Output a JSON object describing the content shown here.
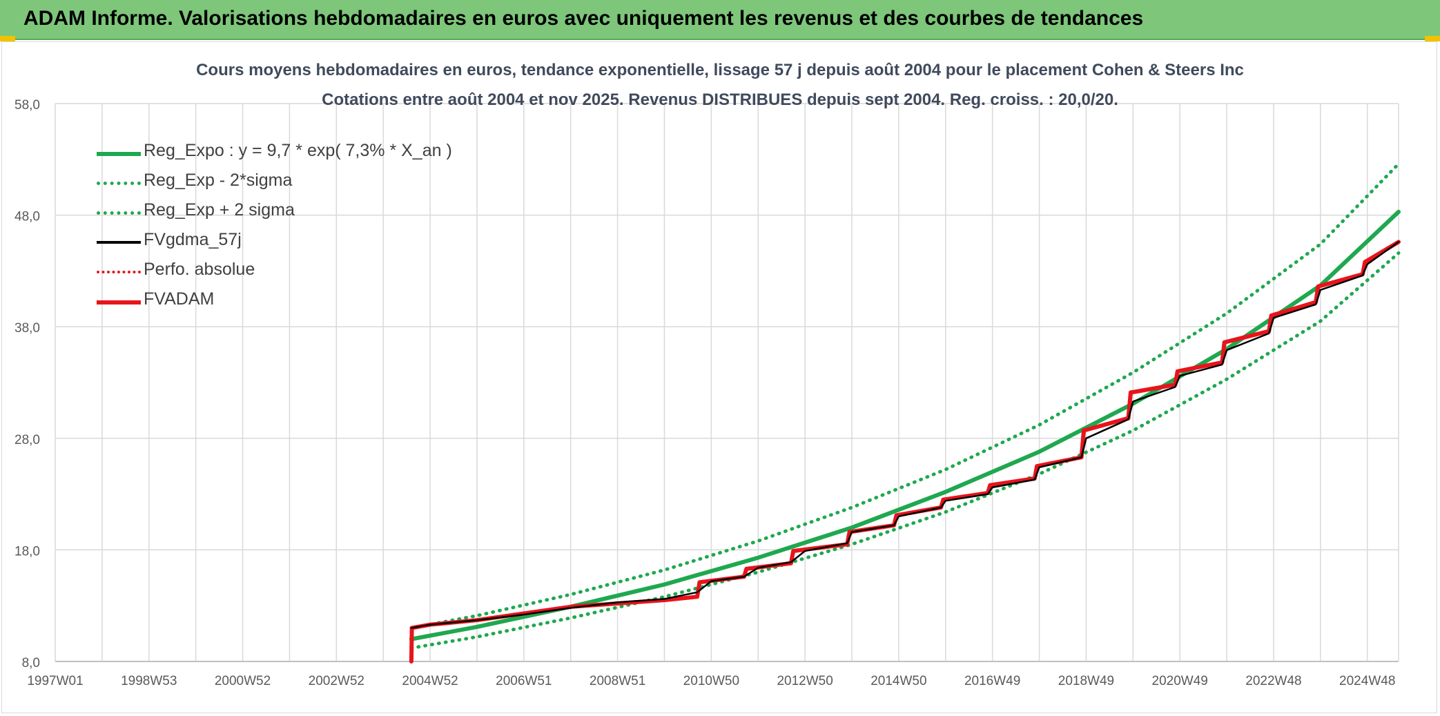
{
  "header": {
    "title": "ADAM Informe. Valorisations hebdomadaires en euros avec uniquement les revenus et des courbes de tendances"
  },
  "colors": {
    "header_bg": "#7dc67a",
    "reg_expo": "#1fa84f",
    "fvgdma": "#000000",
    "fvadam": "#e8141b"
  },
  "chart_data": {
    "type": "line",
    "title_line1": "Cours moyens hebdomadaires en euros, tendance exponentielle, lissage 57 j depuis août 2004 pour le placement Cohen & Steers Inc",
    "title_line2": "Cotations entre août 2004 et nov 2025. Revenus DISTRIBUES depuis sept 2004. Reg. croiss. : 20,0/20.",
    "xlabel": "",
    "ylabel": "",
    "ylim": [
      8,
      58
    ],
    "y_ticks": [
      "8,0",
      "18,0",
      "28,0",
      "38,0",
      "48,0",
      "58,0"
    ],
    "y_tick_values": [
      8,
      18,
      28,
      38,
      48,
      58
    ],
    "xlim": [
      1997.0,
      2026.0
    ],
    "x_tick_labels": [
      "1997W01",
      "1998W53",
      "2000W52",
      "2002W52",
      "2004W52",
      "2006W51",
      "2008W51",
      "2010W50",
      "2012W50",
      "2014W50",
      "2016W49",
      "2018W49",
      "2020W49",
      "2022W48",
      "2024W48"
    ],
    "x_tick_values": [
      1997.0,
      1999.0,
      2001.0,
      2003.0,
      2005.0,
      2007.0,
      2009.0,
      2011.0,
      2013.0,
      2015.0,
      2017.0,
      2019.0,
      2021.0,
      2023.0,
      2025.0
    ],
    "grid": true,
    "legend_position": "top-left",
    "series": [
      {
        "name": "Reg_Expo : y = 9,7 * exp( 7,3% *  X_an )",
        "style": "solid-thick",
        "color": "#1fa84f",
        "x": [
          2004.6,
          2006.0,
          2008.0,
          2010.0,
          2012.0,
          2014.0,
          2016.0,
          2018.0,
          2020.0,
          2022.0,
          2024.0,
          2026.0
        ],
        "y": [
          10.0,
          11.1,
          12.9,
          14.9,
          17.3,
          20.0,
          23.2,
          26.8,
          31.1,
          36.0,
          41.7,
          48.3
        ]
      },
      {
        "name": "Reg_Exp - 2*sigma",
        "style": "dotted",
        "color": "#1fa84f",
        "x": [
          2004.6,
          2006.0,
          2008.0,
          2010.0,
          2012.0,
          2014.0,
          2016.0,
          2018.0,
          2020.0,
          2022.0,
          2024.0,
          2026.0
        ],
        "y": [
          9.2,
          10.2,
          11.9,
          13.8,
          16.0,
          18.5,
          21.4,
          24.8,
          28.7,
          33.3,
          38.5,
          44.6
        ]
      },
      {
        "name": "Reg_Exp + 2 sigma",
        "style": "dotted",
        "color": "#1fa84f",
        "x": [
          2004.6,
          2006.0,
          2008.0,
          2010.0,
          2012.0,
          2014.0,
          2016.0,
          2018.0,
          2020.0,
          2022.0,
          2024.0,
          2026.0
        ],
        "y": [
          11.0,
          12.1,
          14.0,
          16.2,
          18.8,
          21.8,
          25.2,
          29.2,
          33.9,
          39.2,
          45.4,
          52.6
        ]
      },
      {
        "name": "FVgdma_57j",
        "style": "solid",
        "color": "#000000",
        "x": [
          2004.6,
          2005.0,
          2006.0,
          2007.0,
          2008.0,
          2009.0,
          2010.0,
          2010.7,
          2011.0,
          2011.7,
          2012.0,
          2012.7,
          2013.0,
          2013.9,
          2014.0,
          2014.9,
          2015.0,
          2015.9,
          2016.0,
          2016.9,
          2017.0,
          2017.9,
          2018.0,
          2018.9,
          2019.0,
          2019.9,
          2020.0,
          2020.9,
          2021.0,
          2021.9,
          2022.0,
          2022.9,
          2023.0,
          2023.9,
          2024.0,
          2024.9,
          2025.0,
          2026.0
        ],
        "y": [
          11.0,
          11.3,
          11.7,
          12.2,
          12.8,
          13.3,
          13.6,
          14.2,
          15.2,
          15.6,
          16.4,
          16.9,
          17.9,
          18.6,
          19.6,
          20.2,
          21.0,
          21.8,
          22.4,
          23.0,
          23.6,
          24.3,
          25.4,
          26.3,
          28.0,
          29.7,
          31.3,
          32.6,
          33.6,
          34.6,
          35.9,
          37.4,
          38.8,
          40.0,
          41.3,
          42.6,
          43.6,
          45.6
        ]
      },
      {
        "name": "Perfo. absolue",
        "style": "dotted",
        "color": "#e8141b",
        "x": [
          2004.6,
          2004.61,
          2005.0,
          2006.0,
          2007.0,
          2008.0,
          2009.0,
          2010.0,
          2010.7,
          2010.75,
          2011.7,
          2011.75,
          2012.7,
          2012.75,
          2013.9,
          2013.95,
          2014.9,
          2014.95,
          2015.9,
          2015.95,
          2016.9,
          2016.95,
          2017.9,
          2017.95,
          2018.9,
          2018.95,
          2019.9,
          2019.95,
          2020.9,
          2020.95,
          2021.9,
          2021.95,
          2022.9,
          2022.95,
          2023.9,
          2023.95,
          2024.9,
          2024.95,
          2026.0
        ],
        "y": [
          8.0,
          11.0,
          11.3,
          11.7,
          12.3,
          12.9,
          13.2,
          13.5,
          13.8,
          15.1,
          15.6,
          16.3,
          16.8,
          17.9,
          18.5,
          19.6,
          20.2,
          21.1,
          21.8,
          22.5,
          23.1,
          23.8,
          24.4,
          25.5,
          26.3,
          28.7,
          29.8,
          32.1,
          32.8,
          34.0,
          34.8,
          36.6,
          37.6,
          39.0,
          40.2,
          41.6,
          42.7,
          43.8,
          45.6
        ]
      },
      {
        "name": "FVADAM",
        "style": "solid-thick",
        "color": "#e8141b",
        "x": [
          2004.6,
          2004.61,
          2005.0,
          2006.0,
          2007.0,
          2008.0,
          2009.0,
          2010.0,
          2010.7,
          2010.75,
          2011.7,
          2011.75,
          2012.7,
          2012.75,
          2013.9,
          2013.95,
          2014.9,
          2014.95,
          2015.9,
          2015.95,
          2016.9,
          2016.95,
          2017.9,
          2017.95,
          2018.9,
          2018.95,
          2019.9,
          2019.95,
          2020.9,
          2020.95,
          2021.9,
          2021.95,
          2022.9,
          2022.95,
          2023.9,
          2023.95,
          2024.9,
          2024.95,
          2026.0
        ],
        "y": [
          8.0,
          11.0,
          11.3,
          11.7,
          12.3,
          12.9,
          13.2,
          13.5,
          13.8,
          15.1,
          15.6,
          16.3,
          16.8,
          17.9,
          18.5,
          19.6,
          20.2,
          21.1,
          21.8,
          22.5,
          23.1,
          23.8,
          24.4,
          25.5,
          26.3,
          28.7,
          29.8,
          32.1,
          32.8,
          34.0,
          34.8,
          36.6,
          37.6,
          39.0,
          40.2,
          41.6,
          42.7,
          43.8,
          45.6
        ]
      }
    ]
  }
}
